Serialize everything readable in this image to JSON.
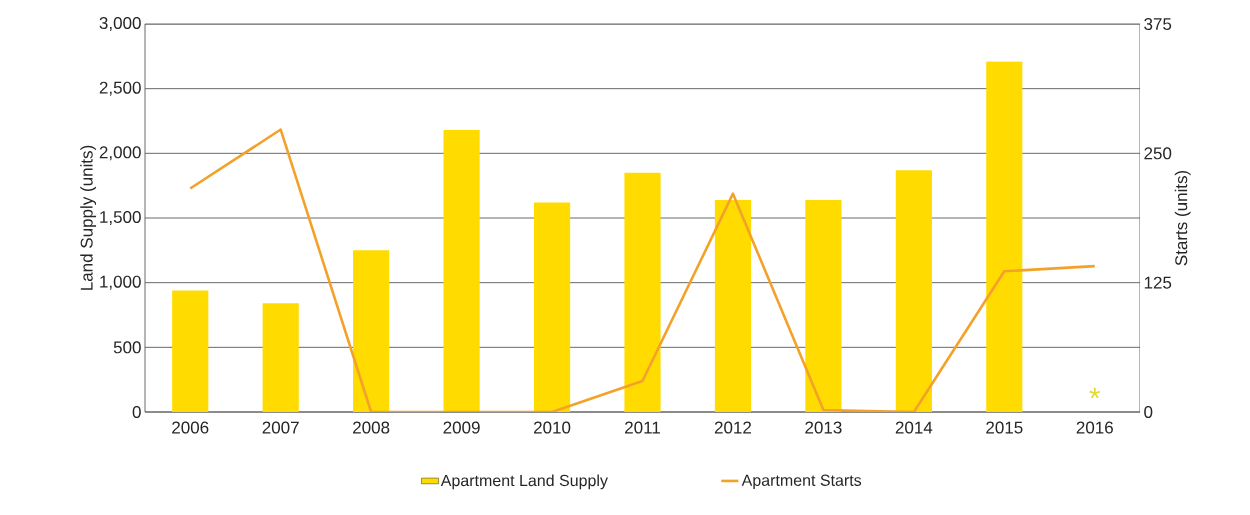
{
  "chart_data": {
    "type": "bar",
    "ylabel": "Land Supply (units)",
    "y2label": "Starts (units)",
    "categories": [
      "2006",
      "2007",
      "2008",
      "2009",
      "2010",
      "2011",
      "2012",
      "2013",
      "2014",
      "2015",
      "2016"
    ],
    "series": [
      {
        "name": "Apartment Land Supply",
        "color": "#ffdb00",
        "values": [
          940,
          840,
          1250,
          2180,
          1620,
          1850,
          1640,
          1640,
          1870,
          2710,
          null
        ]
      },
      {
        "name": "Apartment Starts",
        "type": "line",
        "axis": "y2",
        "color": "#f4a12a",
        "values": [
          216,
          273,
          0,
          0,
          0,
          30,
          211,
          2,
          0,
          136,
          141
        ]
      }
    ],
    "ylim": [
      0,
      3000
    ],
    "yticks": [
      {
        "value": 0,
        "label": "0"
      },
      {
        "value": 500,
        "label": "500"
      },
      {
        "value": 1000,
        "label": "1,000"
      },
      {
        "value": 1500,
        "label": "1,500"
      },
      {
        "value": 2000,
        "label": "2,000"
      },
      {
        "value": 2500,
        "label": "2,500"
      },
      {
        "value": 3000,
        "label": "3,000"
      }
    ],
    "y2lim": [
      0,
      375
    ],
    "y2ticks": [
      0,
      125,
      250,
      375
    ],
    "annotations": [
      "*"
    ],
    "grid": "y",
    "legend": "bottom",
    "marker": "none",
    "line_style": "solid"
  }
}
